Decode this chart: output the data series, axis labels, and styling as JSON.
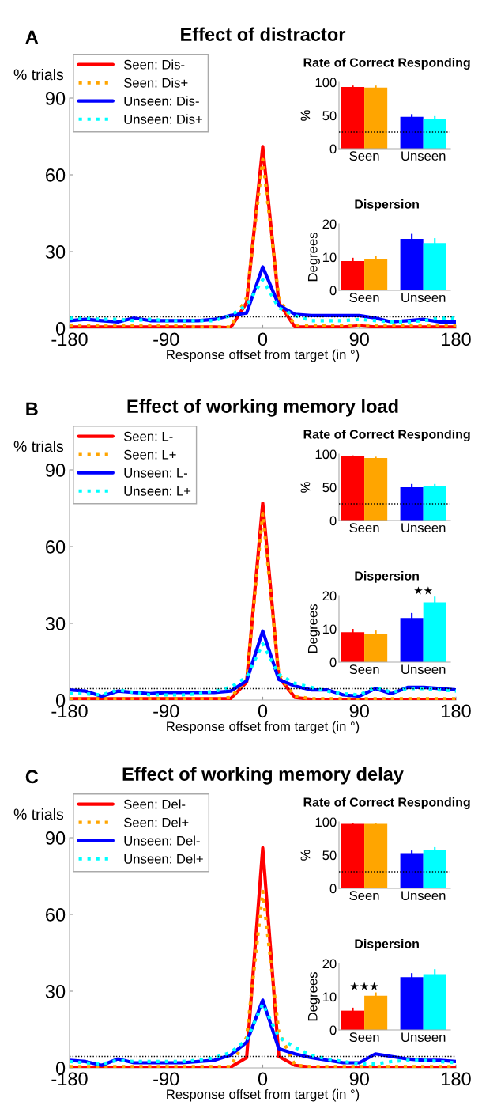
{
  "chart_data": [
    {
      "type": "line",
      "title": "Effect of distractor",
      "annotations": [
        "A"
      ],
      "xlabel": "Response offset from target (in °)",
      "ylabel": "% trials",
      "x": [
        -180,
        -165,
        -150,
        -135,
        -120,
        -105,
        -90,
        -75,
        -60,
        -45,
        -30,
        -15,
        0,
        15,
        30,
        45,
        60,
        75,
        90,
        105,
        120,
        135,
        150,
        165,
        180
      ],
      "xlim": [
        -180,
        180
      ],
      "xticks": [
        -180,
        -90,
        0,
        90,
        180
      ],
      "ylim": [
        0,
        90
      ],
      "yticks": [
        0,
        30,
        60,
        90
      ],
      "legend": "top left",
      "ref_lines": [
        {
          "axis": "y",
          "value": 4.5,
          "color": "#000000",
          "line_style": "dotted"
        }
      ],
      "series": [
        {
          "name": "Seen: Dis-",
          "color": "#ff0000",
          "line_style": "solid",
          "values": [
            0.5,
            0.5,
            0.5,
            0.5,
            0.5,
            0.5,
            0.5,
            0.5,
            0.5,
            0.5,
            0.2,
            10,
            71,
            10,
            0.5,
            0.5,
            0.5,
            0.5,
            1,
            0.5,
            0.5,
            0.5,
            0.5,
            0.5,
            0.5
          ]
        },
        {
          "name": "Seen: Dis+",
          "color": "#ffa500",
          "line_style": "dotted",
          "values": [
            1,
            1,
            1,
            1,
            1,
            1,
            1,
            1,
            0.5,
            0.5,
            0.5,
            12,
            66,
            12,
            1,
            1,
            1,
            1,
            1,
            1,
            1,
            1,
            1,
            1,
            1
          ]
        },
        {
          "name": "Unseen: Dis-",
          "color": "#0000ff",
          "line_style": "solid",
          "values": [
            3,
            3.5,
            3,
            2.5,
            4,
            3,
            3,
            3,
            3,
            3.5,
            5,
            6,
            24,
            9,
            5.5,
            5,
            5,
            5,
            5,
            4,
            2.5,
            3,
            3.5,
            2.5,
            2.5
          ]
        },
        {
          "name": "Unseen: Dis+",
          "color": "#00ffff",
          "line_style": "dotted",
          "values": [
            4,
            4,
            3.5,
            3.5,
            3,
            3.5,
            3,
            3,
            3,
            3,
            5,
            9,
            19,
            8,
            5,
            3,
            3,
            3,
            3.5,
            3,
            2.5,
            2.5,
            3,
            4,
            4
          ]
        }
      ]
    },
    {
      "type": "bar",
      "title": "Rate of Correct Responding",
      "ylabel": "%",
      "categories": [
        "Seen",
        "Unseen"
      ],
      "ylim": [
        0,
        100
      ],
      "yticks": [
        0,
        50,
        100
      ],
      "ref_lines": [
        {
          "axis": "y",
          "value": 25,
          "color": "#000000",
          "line_style": "dotted"
        }
      ],
      "series": [
        {
          "colors": [
            "#ff0000",
            "#0000ff"
          ],
          "values": [
            93,
            48
          ],
          "errors": [
            2,
            4
          ]
        },
        {
          "colors": [
            "#ffa500",
            "#00ffff"
          ],
          "values": [
            92,
            44
          ],
          "errors": [
            3,
            5
          ]
        }
      ]
    },
    {
      "type": "bar",
      "title": "Dispersion",
      "ylabel": "Degrees",
      "categories": [
        "Seen",
        "Unseen"
      ],
      "ylim": [
        0,
        20
      ],
      "yticks": [
        0,
        10,
        20
      ],
      "series": [
        {
          "colors": [
            "#ff0000",
            "#0000ff"
          ],
          "values": [
            8.8,
            15.5
          ],
          "errors": [
            1,
            1.5
          ]
        },
        {
          "colors": [
            "#ffa500",
            "#00ffff"
          ],
          "values": [
            9.4,
            14.2
          ],
          "errors": [
            1,
            1.5
          ]
        }
      ]
    },
    {
      "type": "line",
      "title": "Effect of working memory load",
      "annotations": [
        "B"
      ],
      "xlabel": "Response offset from target (in °)",
      "ylabel": "% trials",
      "x": [
        -180,
        -165,
        -150,
        -135,
        -120,
        -105,
        -90,
        -75,
        -60,
        -45,
        -30,
        -15,
        0,
        15,
        30,
        45,
        60,
        75,
        90,
        105,
        120,
        135,
        150,
        165,
        180
      ],
      "xlim": [
        -180,
        180
      ],
      "xticks": [
        -180,
        -90,
        0,
        90,
        180
      ],
      "ylim": [
        0,
        90
      ],
      "yticks": [
        0,
        30,
        60,
        90
      ],
      "legend": "top left",
      "ref_lines": [
        {
          "axis": "y",
          "value": 4.5,
          "color": "#000000",
          "line_style": "dotted"
        }
      ],
      "series": [
        {
          "name": "Seen: L-",
          "color": "#ff0000",
          "line_style": "solid",
          "values": [
            0.5,
            0.5,
            0.5,
            0.5,
            0.5,
            0.5,
            0.5,
            0.5,
            0.5,
            0.5,
            0.5,
            7,
            77,
            9,
            1,
            0.3,
            0.3,
            0.3,
            0.3,
            0.3,
            0.3,
            0.3,
            0.3,
            0.3,
            0.3
          ]
        },
        {
          "name": "Seen: L+",
          "color": "#ffa500",
          "line_style": "dotted",
          "values": [
            0.5,
            0.5,
            0.5,
            0.5,
            0.5,
            0.5,
            0.5,
            0.5,
            0.5,
            0.5,
            1,
            8,
            73,
            10,
            1.5,
            0.5,
            0.5,
            0.5,
            0.5,
            0.5,
            0.5,
            0.5,
            0.5,
            0.5,
            0.5
          ]
        },
        {
          "name": "Unseen: L-",
          "color": "#0000ff",
          "line_style": "solid",
          "values": [
            4,
            3.5,
            1.5,
            3.5,
            3,
            2.5,
            3,
            3,
            3,
            3,
            3.5,
            7.5,
            27,
            8,
            5.5,
            4,
            4,
            2,
            1.5,
            4.5,
            2.5,
            5,
            5,
            4.5,
            4
          ]
        },
        {
          "name": "Unseen: L+",
          "color": "#00ffff",
          "line_style": "dotted",
          "values": [
            2.5,
            2.5,
            2,
            4,
            3,
            2,
            2,
            2,
            2.5,
            3.5,
            5,
            9,
            22,
            10,
            6.5,
            5,
            3.5,
            2.5,
            2,
            5,
            3,
            4.5,
            4.5,
            4,
            3.5
          ]
        }
      ]
    },
    {
      "type": "bar",
      "title": "Rate of Correct Responding",
      "ylabel": "%",
      "categories": [
        "Seen",
        "Unseen"
      ],
      "ylim": [
        0,
        100
      ],
      "yticks": [
        0,
        50,
        100
      ],
      "ref_lines": [
        {
          "axis": "y",
          "value": 25,
          "color": "#000000",
          "line_style": "dotted"
        }
      ],
      "series": [
        {
          "colors": [
            "#ff0000",
            "#0000ff"
          ],
          "values": [
            97,
            50
          ],
          "errors": [
            1,
            5
          ]
        },
        {
          "colors": [
            "#ffa500",
            "#00ffff"
          ],
          "values": [
            94,
            52
          ],
          "errors": [
            2,
            3
          ]
        }
      ]
    },
    {
      "type": "bar",
      "title": "Dispersion",
      "ylabel": "Degrees",
      "categories": [
        "Seen",
        "Unseen"
      ],
      "ylim": [
        0,
        20
      ],
      "yticks": [
        0,
        10,
        20
      ],
      "annotations": [
        "★★"
      ],
      "series": [
        {
          "colors": [
            "#ff0000",
            "#0000ff"
          ],
          "values": [
            9,
            13.3
          ],
          "errors": [
            1,
            1.5
          ]
        },
        {
          "colors": [
            "#ffa500",
            "#00ffff"
          ],
          "values": [
            8.5,
            18
          ],
          "errors": [
            1,
            1.7
          ]
        }
      ]
    },
    {
      "type": "line",
      "title": "Effect of working memory delay",
      "annotations": [
        "C"
      ],
      "xlabel": "Response offset from target (in °)",
      "ylabel": "% trials",
      "x": [
        -180,
        -165,
        -150,
        -135,
        -120,
        -105,
        -90,
        -75,
        -60,
        -45,
        -30,
        -15,
        0,
        15,
        30,
        45,
        60,
        75,
        90,
        105,
        120,
        135,
        150,
        165,
        180
      ],
      "xlim": [
        -180,
        180
      ],
      "xticks": [
        -180,
        -90,
        0,
        90,
        180
      ],
      "ylim": [
        0,
        90
      ],
      "yticks": [
        0,
        30,
        60,
        90
      ],
      "legend": "top left",
      "ref_lines": [
        {
          "axis": "y",
          "value": 4.5,
          "color": "#000000",
          "line_style": "dotted"
        }
      ],
      "series": [
        {
          "name": "Seen: Del-",
          "color": "#ff0000",
          "line_style": "solid",
          "values": [
            0.3,
            0.3,
            0.3,
            0.3,
            0.3,
            0.3,
            0.3,
            0.3,
            0.3,
            0.3,
            0.3,
            4,
            86,
            4.5,
            1,
            0.3,
            0.3,
            0.3,
            0.3,
            0.3,
            0.3,
            0.3,
            0.3,
            0.3,
            0.3
          ]
        },
        {
          "name": "Seen: Del+",
          "color": "#ffa500",
          "line_style": "dotted",
          "values": [
            0.5,
            0.5,
            0.5,
            0.5,
            0.5,
            0.5,
            0.5,
            0.5,
            0.5,
            0.5,
            0.5,
            12,
            69,
            14,
            1,
            0.5,
            0.5,
            0.5,
            0.5,
            0.5,
            0.5,
            0.5,
            0.5,
            0.5,
            0.5
          ]
        },
        {
          "name": "Unseen: Del-",
          "color": "#0000ff",
          "line_style": "solid",
          "values": [
            3,
            2.5,
            1,
            3.5,
            2,
            2,
            2,
            2,
            2.5,
            3,
            5,
            10,
            26.5,
            7.5,
            5.5,
            4,
            3,
            2,
            2,
            5.5,
            4.5,
            3.5,
            3,
            3,
            2.5
          ]
        },
        {
          "name": "Unseen: Del+",
          "color": "#00ffff",
          "line_style": "dotted",
          "values": [
            2.5,
            2,
            1.5,
            3,
            2.5,
            2.5,
            2.5,
            2.5,
            3,
            4,
            6,
            11,
            25,
            12,
            8,
            5,
            3.5,
            2.5,
            1.5,
            1.5,
            2.5,
            3,
            3,
            2.5,
            2
          ]
        }
      ]
    },
    {
      "type": "bar",
      "title": "Rate of Correct Responding",
      "ylabel": "%",
      "categories": [
        "Seen",
        "Unseen"
      ],
      "ylim": [
        0,
        100
      ],
      "yticks": [
        0,
        50,
        100
      ],
      "ref_lines": [
        {
          "axis": "y",
          "value": 25,
          "color": "#000000",
          "line_style": "dotted"
        }
      ],
      "series": [
        {
          "colors": [
            "#ff0000",
            "#0000ff"
          ],
          "values": [
            97,
            53
          ],
          "errors": [
            1,
            4
          ]
        },
        {
          "colors": [
            "#ffa500",
            "#00ffff"
          ],
          "values": [
            97,
            58
          ],
          "errors": [
            1,
            4
          ]
        }
      ]
    },
    {
      "type": "bar",
      "title": "Dispersion",
      "ylabel": "Degrees",
      "categories": [
        "Seen",
        "Unseen"
      ],
      "ylim": [
        0,
        20
      ],
      "yticks": [
        0,
        10,
        20
      ],
      "annotations": [
        "★★★"
      ],
      "series": [
        {
          "colors": [
            "#ff0000",
            "#0000ff"
          ],
          "values": [
            5.8,
            15.9
          ],
          "errors": [
            0.9,
            1.2
          ]
        },
        {
          "colors": [
            "#ffa500",
            "#00ffff"
          ],
          "values": [
            10.3,
            16.8
          ],
          "errors": [
            1,
            1.5
          ]
        }
      ]
    }
  ]
}
